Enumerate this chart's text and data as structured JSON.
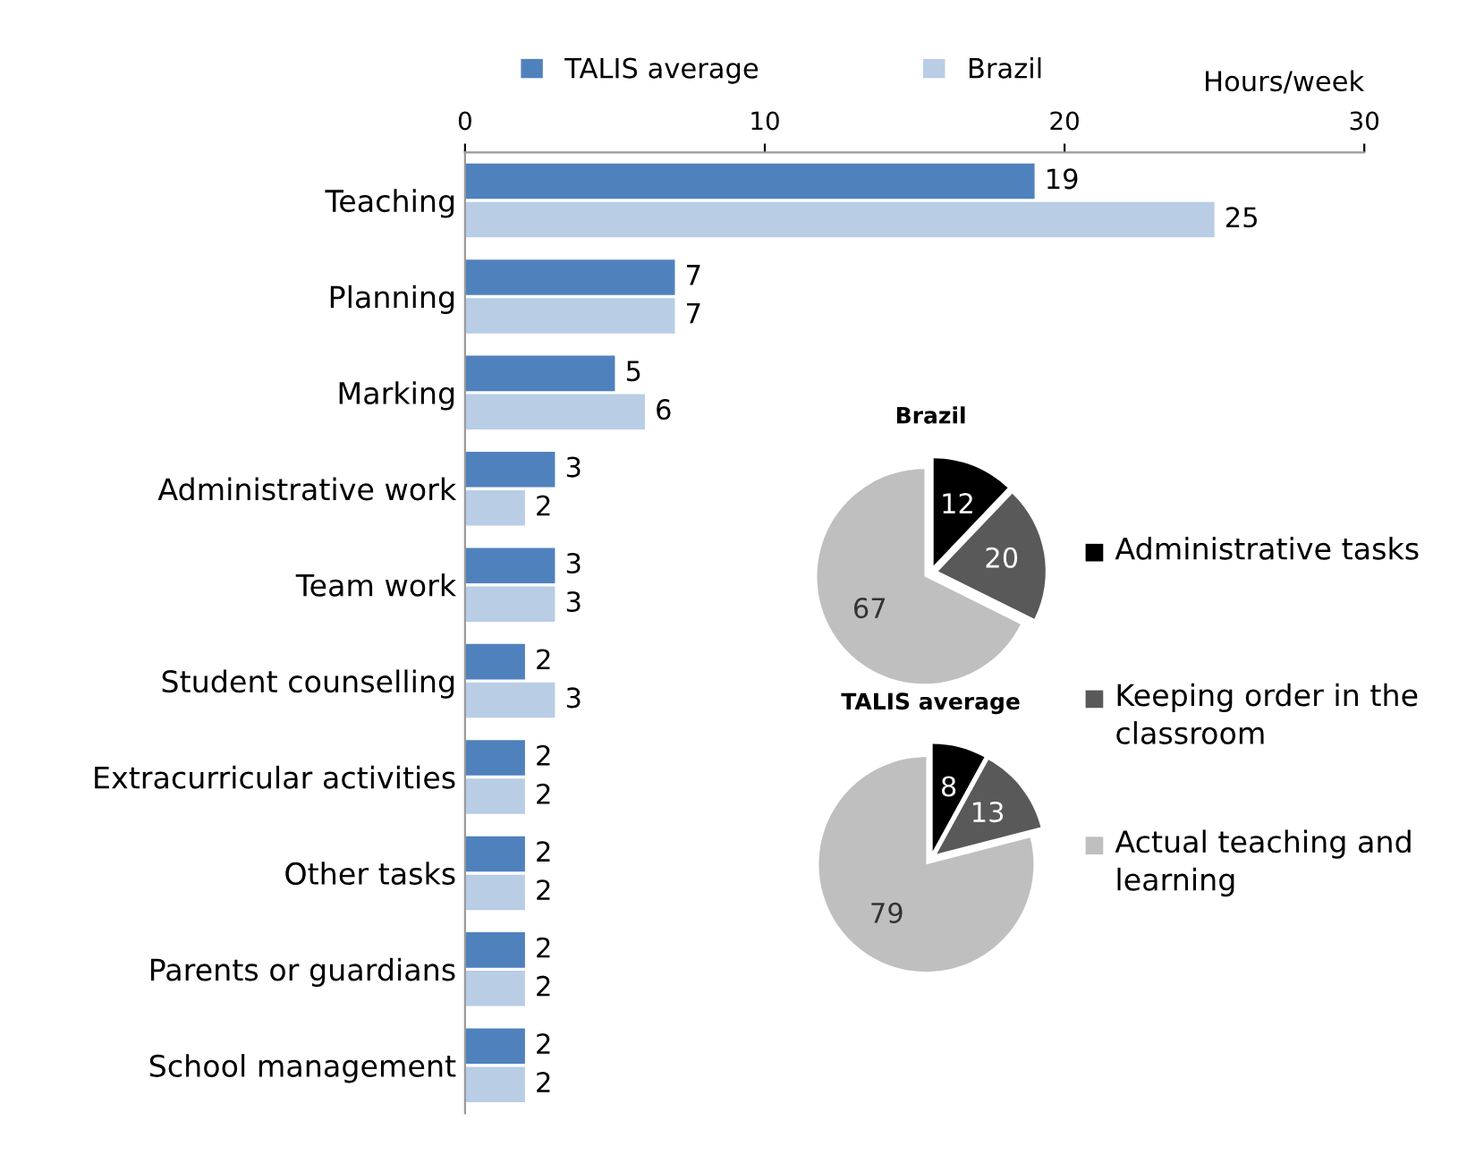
{
  "chart_data": [
    {
      "type": "bar",
      "orientation": "horizontal",
      "xlabel": "Hours/week",
      "categories": [
        "Teaching",
        "Planning",
        "Marking",
        "Administrative work",
        "Team work",
        "Student counselling",
        "Extracurricular activities",
        "Other tasks",
        "Parents or guardians",
        "School management"
      ],
      "series": [
        {
          "name": "TALIS average",
          "color": "#4f81bd",
          "values": [
            19,
            7,
            5,
            3,
            3,
            2,
            2,
            2,
            2,
            2
          ]
        },
        {
          "name": "Brazil",
          "color": "#b9cde5",
          "values": [
            25,
            7,
            6,
            2,
            3,
            3,
            2,
            2,
            2,
            2
          ]
        }
      ],
      "xlim": [
        0,
        30
      ],
      "xticks": [
        0,
        10,
        20,
        30
      ],
      "data_labels": true,
      "legend": "top",
      "grid": false
    },
    {
      "type": "pie",
      "title": "Brazil",
      "categories": [
        "Administrative tasks",
        "Keeping order in the classroom",
        "Actual teaching and learning"
      ],
      "values": [
        12,
        20,
        67
      ],
      "colors": [
        "#000000",
        "#595959",
        "#bfbfbf"
      ],
      "data_labels": true,
      "legend": "right"
    },
    {
      "type": "pie",
      "title": "TALIS average",
      "categories": [
        null,
        null,
        null
      ],
      "values": [
        8,
        13,
        79
      ],
      "colors": [
        "#000000",
        "#595959",
        "#bfbfbf"
      ],
      "data_labels": true
    }
  ]
}
